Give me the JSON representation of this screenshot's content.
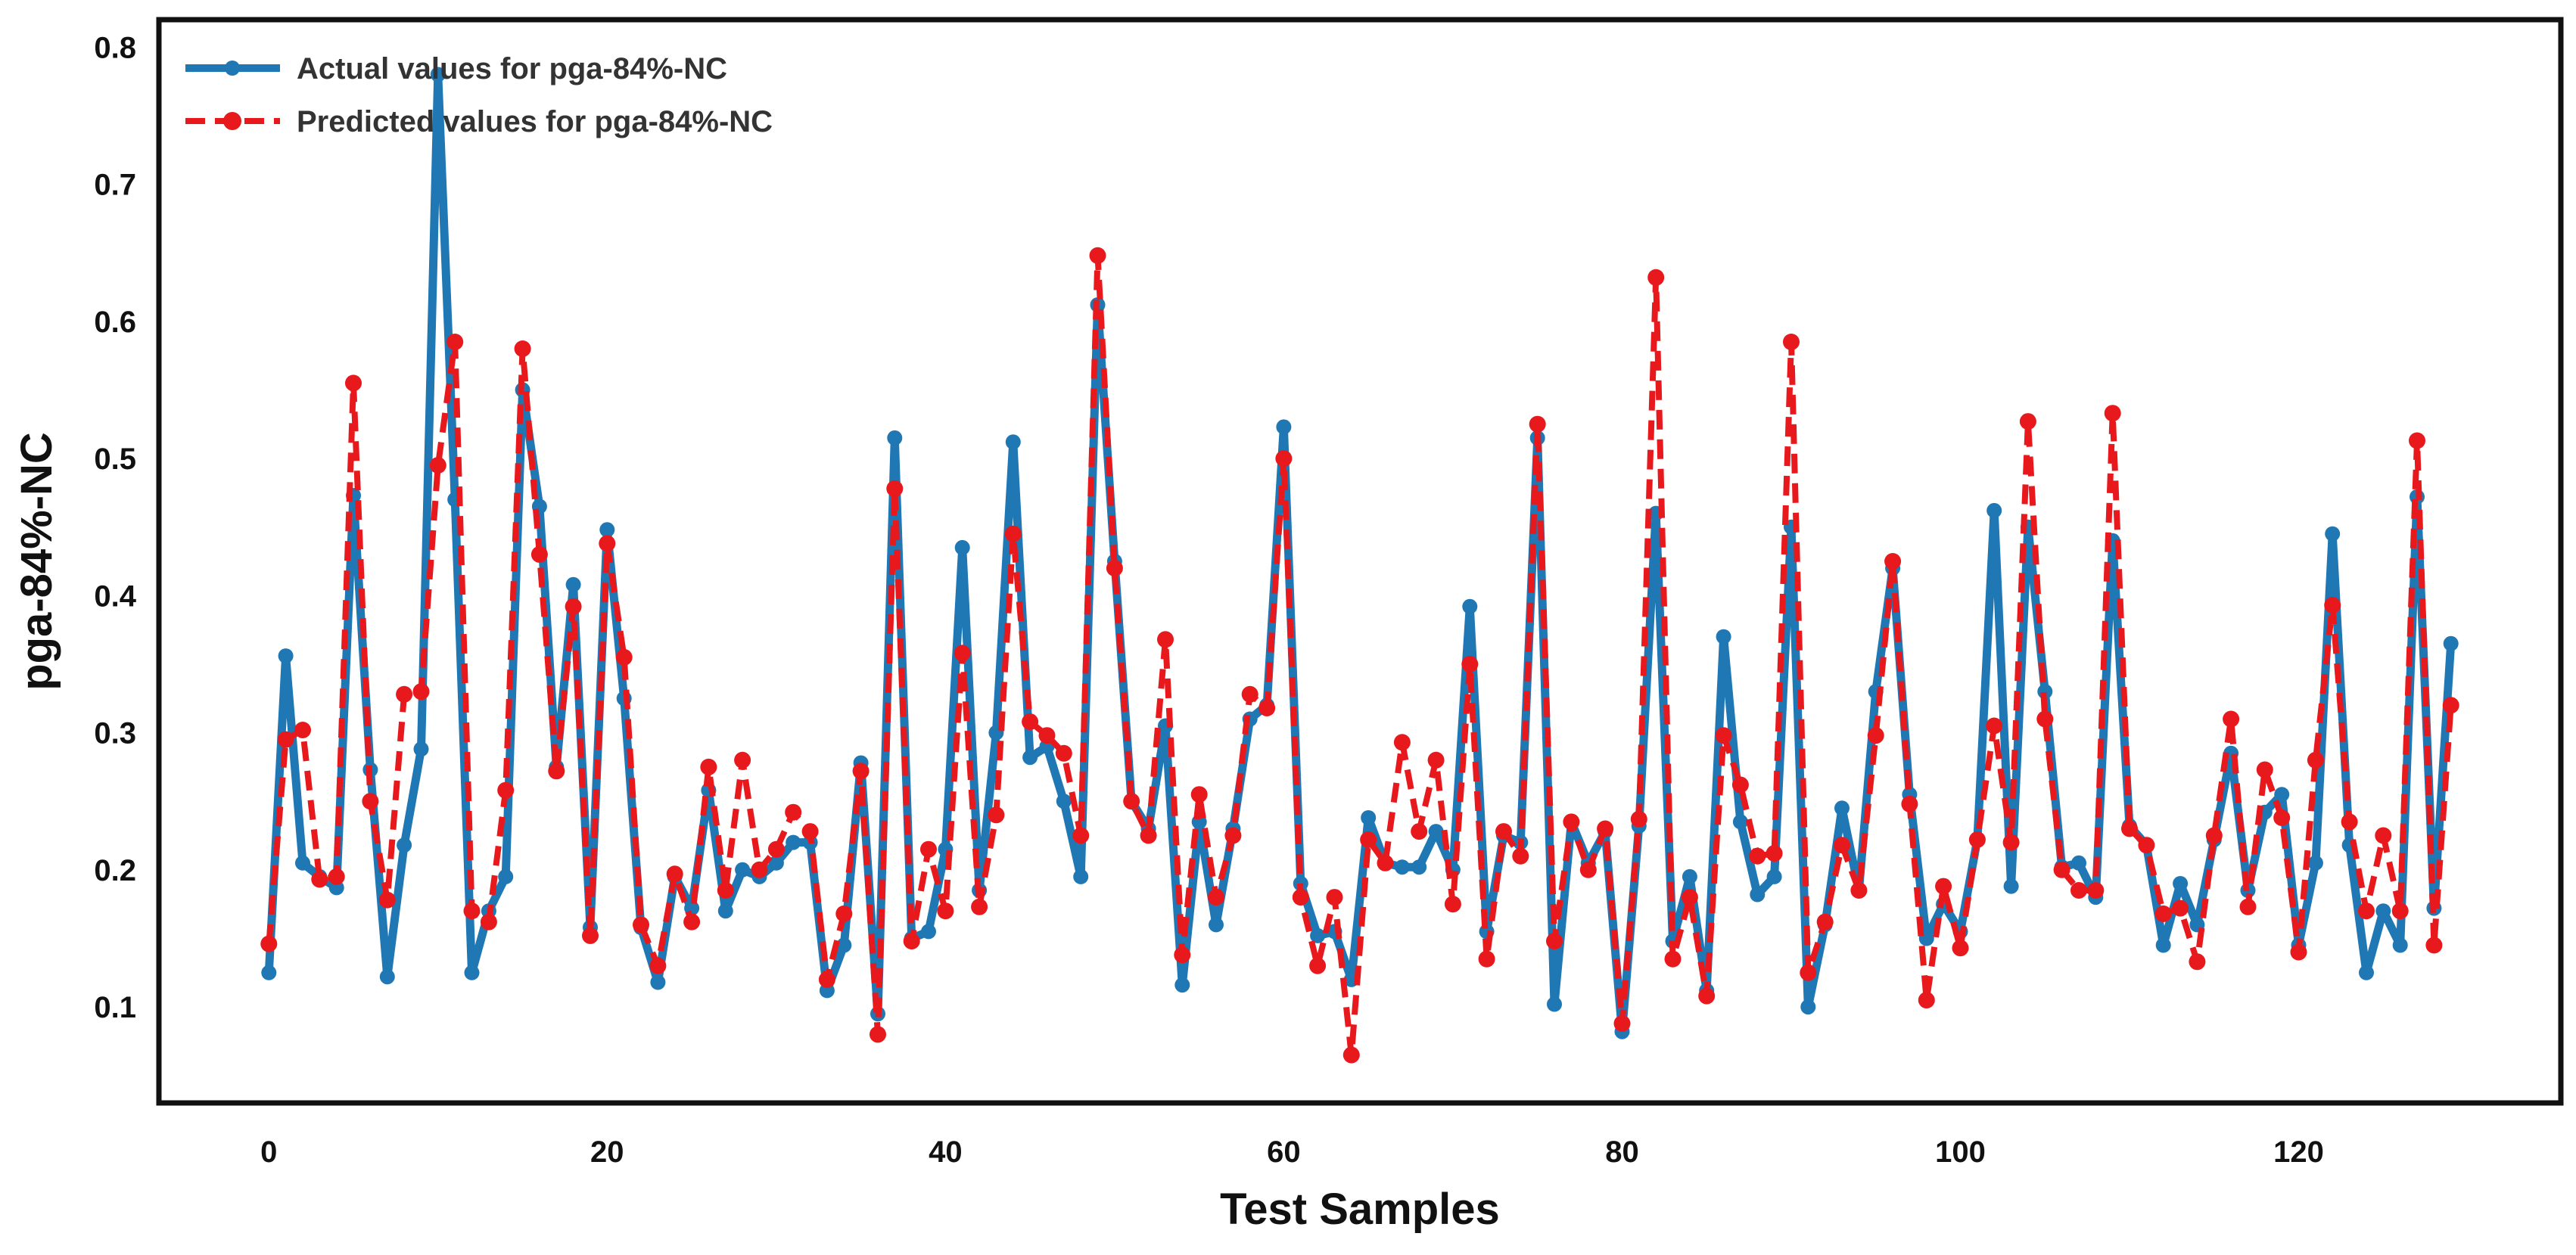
{
  "chart_data": {
    "type": "line",
    "title": "",
    "xlabel": "Test Samples",
    "ylabel": "pga-84%-NC",
    "xlim": [
      -6.5,
      135.5
    ],
    "ylim": [
      0.03,
      0.82
    ],
    "xticks": [
      0,
      20,
      40,
      60,
      80,
      100,
      120
    ],
    "xtick_labels": [
      "0",
      "20",
      "40",
      "60",
      "80",
      "100",
      "120"
    ],
    "yticks": [
      0.1,
      0.2,
      0.3,
      0.4,
      0.5,
      0.6,
      0.7,
      0.8
    ],
    "ytick_labels": [
      "0.1",
      "0.2",
      "0.3",
      "0.4",
      "0.5",
      "0.6",
      "0.7",
      "0.8"
    ],
    "grid": false,
    "legend_position": "top-left",
    "series": [
      {
        "name": "Actual values for pga-84%-NC",
        "color": "#1f77b4",
        "style": "solid",
        "values": [
          0.125,
          0.356,
          0.205,
          0.195,
          0.187,
          0.473,
          0.273,
          0.122,
          0.218,
          0.288,
          0.78,
          0.47,
          0.125,
          0.17,
          0.195,
          0.55,
          0.465,
          0.275,
          0.408,
          0.158,
          0.448,
          0.325,
          0.158,
          0.118,
          0.195,
          0.172,
          0.258,
          0.17,
          0.2,
          0.195,
          0.205,
          0.22,
          0.22,
          0.112,
          0.145,
          0.278,
          0.095,
          0.515,
          0.15,
          0.155,
          0.215,
          0.435,
          0.185,
          0.3,
          0.512,
          0.282,
          0.29,
          0.25,
          0.195,
          0.612,
          0.425,
          0.25,
          0.23,
          0.305,
          0.116,
          0.235,
          0.16,
          0.23,
          0.31,
          0.32,
          0.523,
          0.19,
          0.152,
          0.155,
          0.12,
          0.238,
          0.205,
          0.202,
          0.202,
          0.228,
          0.2,
          0.392,
          0.155,
          0.225,
          0.22,
          0.515,
          0.102,
          0.235,
          0.205,
          0.228,
          0.082,
          0.232,
          0.46,
          0.148,
          0.195,
          0.112,
          0.37,
          0.235,
          0.182,
          0.195,
          0.45,
          0.1,
          0.16,
          0.245,
          0.185,
          0.33,
          0.42,
          0.255,
          0.15,
          0.175,
          0.155,
          0.222,
          0.462,
          0.188,
          0.45,
          0.33,
          0.202,
          0.205,
          0.18,
          0.44,
          0.232,
          0.218,
          0.145,
          0.19,
          0.16,
          0.222,
          0.285,
          0.185,
          0.242,
          0.255,
          0.145,
          0.205,
          0.445,
          0.218,
          0.125,
          0.17,
          0.145,
          0.472,
          0.172,
          0.365
        ]
      },
      {
        "name": "Predicted values for pga-84%-NC",
        "color": "#e8191d",
        "style": "dashed",
        "values": [
          0.146,
          0.295,
          0.302,
          0.193,
          0.195,
          0.555,
          0.25,
          0.178,
          0.328,
          0.33,
          0.495,
          0.585,
          0.17,
          0.162,
          0.258,
          0.58,
          0.43,
          0.272,
          0.392,
          0.152,
          0.438,
          0.355,
          0.16,
          0.13,
          0.197,
          0.162,
          0.275,
          0.185,
          0.28,
          0.2,
          0.215,
          0.242,
          0.228,
          0.12,
          0.168,
          0.272,
          0.08,
          0.478,
          0.148,
          0.215,
          0.17,
          0.358,
          0.173,
          0.24,
          0.445,
          0.308,
          0.298,
          0.285,
          0.225,
          0.648,
          0.42,
          0.25,
          0.225,
          0.368,
          0.138,
          0.255,
          0.18,
          0.225,
          0.328,
          0.318,
          0.5,
          0.18,
          0.13,
          0.18,
          0.065,
          0.222,
          0.205,
          0.293,
          0.228,
          0.28,
          0.175,
          0.35,
          0.135,
          0.228,
          0.21,
          0.525,
          0.148,
          0.235,
          0.2,
          0.23,
          0.088,
          0.237,
          0.632,
          0.135,
          0.18,
          0.108,
          0.298,
          0.262,
          0.21,
          0.212,
          0.585,
          0.125,
          0.162,
          0.218,
          0.185,
          0.298,
          0.425,
          0.248,
          0.105,
          0.188,
          0.143,
          0.222,
          0.305,
          0.22,
          0.527,
          0.31,
          0.2,
          0.185,
          0.185,
          0.533,
          0.23,
          0.218,
          0.168,
          0.172,
          0.133,
          0.225,
          0.31,
          0.173,
          0.273,
          0.238,
          0.14,
          0.28,
          0.393,
          0.235,
          0.17,
          0.225,
          0.17,
          0.513,
          0.145,
          0.32
        ]
      }
    ]
  }
}
